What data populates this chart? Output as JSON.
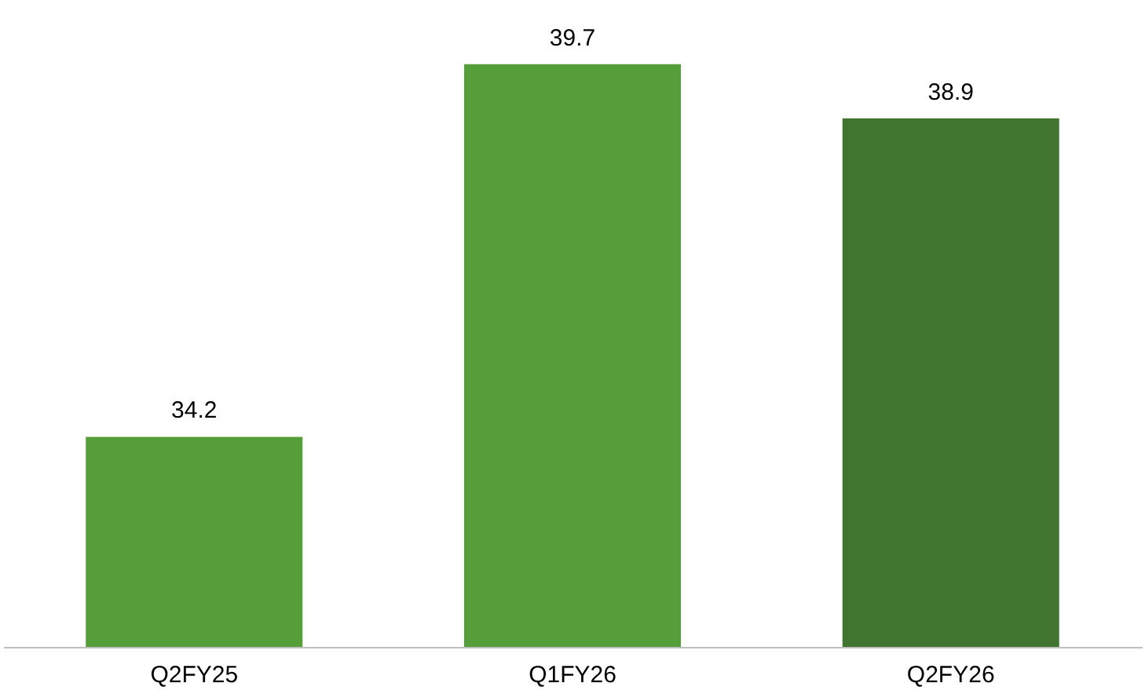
{
  "chart_data": {
    "type": "bar",
    "categories": [
      "Q2FY25",
      "Q1FY26",
      "Q2FY26"
    ],
    "values": [
      34.2,
      39.7,
      38.9
    ],
    "colors": [
      "#559e3a",
      "#559e3a",
      "#41742e"
    ],
    "data_labels": true,
    "ylim": [
      31.1,
      40.6
    ],
    "tick_labels": "x",
    "grid": false
  }
}
